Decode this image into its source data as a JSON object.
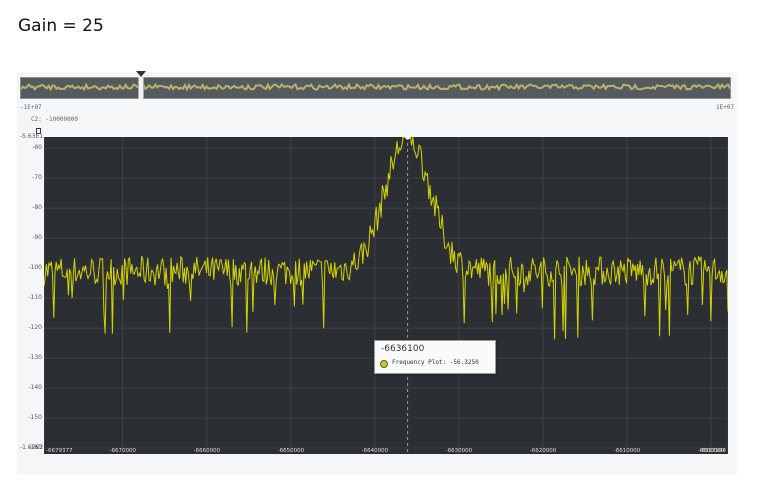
{
  "heading": "Gain = 25",
  "overview": {
    "left_label": "-1E+07",
    "right_label": "1E+07",
    "cursor_label": "C2: -10000000"
  },
  "axis_ends": {
    "top": "-5.63E1",
    "bottom": "-1.62E2"
  },
  "tooltip": {
    "title": "-6636100",
    "row": "Frequency Plot: -56.3250"
  },
  "colors": {
    "plot_bg": "#2b2f33",
    "trace": "#d4d400",
    "grid": "#4a4f54",
    "cursor": "#b8b8b8"
  },
  "chart_data": {
    "type": "line",
    "title": "",
    "xlabel": "",
    "ylabel": "",
    "xlim": [
      -6679377,
      -6597984
    ],
    "ylim": [
      -162,
      -56.3
    ],
    "yticks": [
      -60,
      -70,
      -80,
      -90,
      -100,
      -110,
      -120,
      -130,
      -140,
      -150,
      -160
    ],
    "ytick_labels": [
      "-60",
      "-70",
      "-80",
      "-90",
      "-100",
      "-110",
      "-120",
      "-130",
      "-140",
      "-150",
      "-160"
    ],
    "xticks": [
      -6679377,
      -6670000,
      -6660000,
      -6650000,
      -6640000,
      -6630000,
      -6620000,
      -6610000,
      -6600000,
      -6597984
    ],
    "xtick_labels": [
      "-6679377",
      "-6670000",
      "-6660000",
      "-6650000",
      "-6640000",
      "-6630000",
      "-6620000",
      "-6610000",
      "-6600000",
      "-6597984"
    ],
    "cursor_x": -6636100,
    "grid": true,
    "series": [
      {
        "noise_floor": -101,
        "peak_x": -6636100,
        "peak_y": -56.325,
        "peak_halfwidth": 3800
      }
    ]
  }
}
